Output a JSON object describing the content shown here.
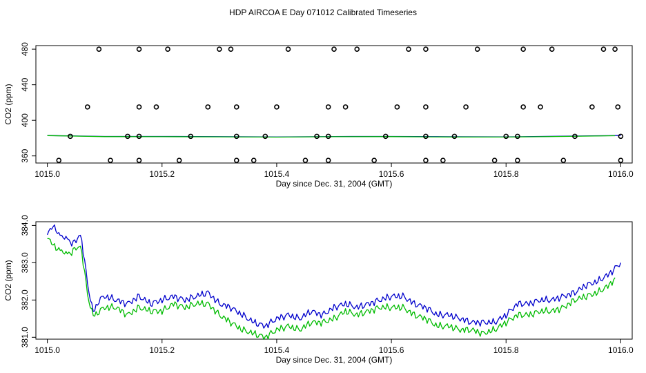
{
  "title": "HDP AIRCOA E  Day 071012  Calibrated Timeseries",
  "colors": {
    "series_blue": "#0000cc",
    "series_green": "#00bb00",
    "points": "#000000"
  },
  "chart_data": [
    {
      "type": "scatter",
      "xlabel": "Day since Dec. 31, 2004 (GMT)",
      "ylabel": "CO2 (ppm)",
      "xlim": [
        1014.98,
        1016.02
      ],
      "ylim": [
        352,
        484
      ],
      "xticks": [
        "1015.0",
        "1015.2",
        "1015.4",
        "1015.6",
        "1015.8",
        "1016.0"
      ],
      "yticks": [
        "360",
        "400",
        "440",
        "480"
      ],
      "grid": false,
      "points": {
        "name": "calibration",
        "x": [
          1015.09,
          1015.16,
          1015.21,
          1015.3,
          1015.32,
          1015.42,
          1015.5,
          1015.54,
          1015.63,
          1015.66,
          1015.75,
          1015.83,
          1015.88,
          1015.97,
          1015.99,
          1015.07,
          1015.16,
          1015.19,
          1015.28,
          1015.33,
          1015.4,
          1015.49,
          1015.52,
          1015.61,
          1015.66,
          1015.73,
          1015.83,
          1015.86,
          1015.95,
          1015.995,
          1015.04,
          1015.14,
          1015.16,
          1015.25,
          1015.33,
          1015.38,
          1015.47,
          1015.49,
          1015.59,
          1015.66,
          1015.71,
          1015.8,
          1015.82,
          1015.92,
          1016.0,
          1015.02,
          1015.11,
          1015.16,
          1015.23,
          1015.33,
          1015.36,
          1015.45,
          1015.49,
          1015.57,
          1015.66,
          1015.69,
          1015.78,
          1015.82,
          1015.9,
          1016.0
        ],
        "y": [
          480,
          480,
          480,
          480,
          480,
          480,
          480,
          480,
          480,
          480,
          480,
          480,
          480,
          480,
          480,
          415,
          415,
          415,
          415,
          415,
          415,
          415,
          415,
          415,
          415,
          415,
          415,
          415,
          415,
          415,
          382,
          382,
          382,
          382,
          382,
          382,
          382,
          382,
          382,
          382,
          382,
          382,
          382,
          382,
          382,
          355,
          355,
          355,
          355,
          355,
          355,
          355,
          355,
          355,
          355,
          355,
          355,
          355,
          355,
          355
        ]
      },
      "series": [
        {
          "x": [
            1015.0,
            1015.1,
            1015.2,
            1015.3,
            1015.4,
            1015.5,
            1015.6,
            1015.7,
            1015.8,
            1015.9,
            1016.0
          ],
          "values": [
            382.9,
            381.9,
            381.9,
            381.7,
            381.3,
            381.8,
            381.9,
            381.6,
            381.4,
            382.1,
            383.0
          ]
        },
        {
          "x": [
            1015.0,
            1015.1,
            1015.2,
            1015.3,
            1015.4,
            1015.5,
            1015.6,
            1015.7,
            1015.8,
            1015.9,
            1015.99
          ],
          "values": [
            382.8,
            381.7,
            381.6,
            381.4,
            381.1,
            381.6,
            381.7,
            381.3,
            381.2,
            381.9,
            382.7
          ]
        }
      ]
    },
    {
      "type": "line",
      "xlabel": "Day since Dec. 31, 2004 (GMT)",
      "ylabel": "CO2 (ppm)",
      "xlim": [
        1014.98,
        1016.02
      ],
      "ylim": [
        380.95,
        384.1
      ],
      "xticks": [
        "1015.0",
        "1015.2",
        "1015.4",
        "1015.6",
        "1015.8",
        "1016.0"
      ],
      "yticks": [
        "381.0",
        "382.0",
        "383.0",
        "384.0"
      ],
      "grid": false,
      "series": [
        {
          "x": [
            1015.0,
            1015.005,
            1015.01,
            1015.015,
            1015.02,
            1015.025,
            1015.03,
            1015.035,
            1015.04,
            1015.045,
            1015.05,
            1015.055,
            1015.06,
            1015.065,
            1015.07,
            1015.075,
            1015.08,
            1015.085,
            1015.09,
            1015.1,
            1015.12,
            1015.14,
            1015.16,
            1015.18,
            1015.2,
            1015.22,
            1015.24,
            1015.26,
            1015.28,
            1015.3,
            1015.32,
            1015.34,
            1015.36,
            1015.38,
            1015.4,
            1015.42,
            1015.44,
            1015.46,
            1015.48,
            1015.5,
            1015.52,
            1015.54,
            1015.56,
            1015.58,
            1015.6,
            1015.62,
            1015.64,
            1015.66,
            1015.68,
            1015.7,
            1015.72,
            1015.74,
            1015.76,
            1015.78,
            1015.8,
            1015.82,
            1015.84,
            1015.86,
            1015.88,
            1015.9,
            1015.92,
            1015.94,
            1015.96,
            1015.98,
            1016.0
          ],
          "values": [
            383.7,
            383.9,
            384.0,
            383.9,
            383.7,
            383.8,
            383.6,
            383.7,
            383.5,
            383.6,
            383.5,
            383.8,
            383.6,
            383.0,
            382.5,
            382.0,
            381.7,
            381.8,
            382.0,
            382.1,
            382.0,
            381.9,
            382.1,
            381.9,
            382.0,
            382.1,
            382.0,
            382.1,
            382.2,
            381.9,
            381.8,
            381.6,
            381.4,
            381.3,
            381.5,
            381.6,
            381.5,
            381.7,
            381.6,
            381.8,
            381.9,
            381.8,
            381.9,
            382.0,
            382.1,
            382.1,
            381.9,
            381.8,
            381.6,
            381.6,
            381.5,
            381.4,
            381.4,
            381.4,
            381.6,
            381.9,
            381.9,
            382.0,
            382.0,
            382.1,
            382.2,
            382.4,
            382.5,
            382.7,
            383.0
          ]
        },
        {
          "x": [
            1015.0,
            1015.005,
            1015.01,
            1015.015,
            1015.02,
            1015.025,
            1015.03,
            1015.035,
            1015.04,
            1015.045,
            1015.05,
            1015.055,
            1015.06,
            1015.065,
            1015.07,
            1015.075,
            1015.08,
            1015.085,
            1015.09,
            1015.1,
            1015.12,
            1015.14,
            1015.16,
            1015.18,
            1015.2,
            1015.22,
            1015.24,
            1015.26,
            1015.28,
            1015.3,
            1015.32,
            1015.34,
            1015.36,
            1015.38,
            1015.4,
            1015.42,
            1015.44,
            1015.46,
            1015.48,
            1015.5,
            1015.52,
            1015.54,
            1015.56,
            1015.58,
            1015.6,
            1015.62,
            1015.64,
            1015.66,
            1015.68,
            1015.7,
            1015.72,
            1015.74,
            1015.76,
            1015.78,
            1015.8,
            1015.82,
            1015.84,
            1015.86,
            1015.88,
            1015.9,
            1015.92,
            1015.94,
            1015.96,
            1015.98,
            1015.99
          ],
          "values": [
            383.6,
            383.6,
            383.5,
            383.4,
            383.3,
            383.4,
            383.2,
            383.3,
            383.2,
            383.4,
            383.3,
            383.5,
            383.3,
            382.7,
            382.2,
            381.8,
            381.6,
            381.6,
            381.7,
            381.8,
            381.8,
            381.6,
            381.8,
            381.7,
            381.7,
            381.9,
            381.8,
            381.9,
            381.9,
            381.6,
            381.4,
            381.2,
            381.1,
            381.0,
            381.2,
            381.3,
            381.2,
            381.4,
            381.4,
            381.5,
            381.7,
            381.6,
            381.7,
            381.8,
            381.8,
            381.8,
            381.6,
            381.5,
            381.3,
            381.3,
            381.2,
            381.2,
            381.1,
            381.2,
            381.4,
            381.6,
            381.6,
            381.7,
            381.7,
            381.8,
            382.0,
            382.1,
            382.2,
            382.4,
            382.6
          ]
        }
      ]
    }
  ]
}
